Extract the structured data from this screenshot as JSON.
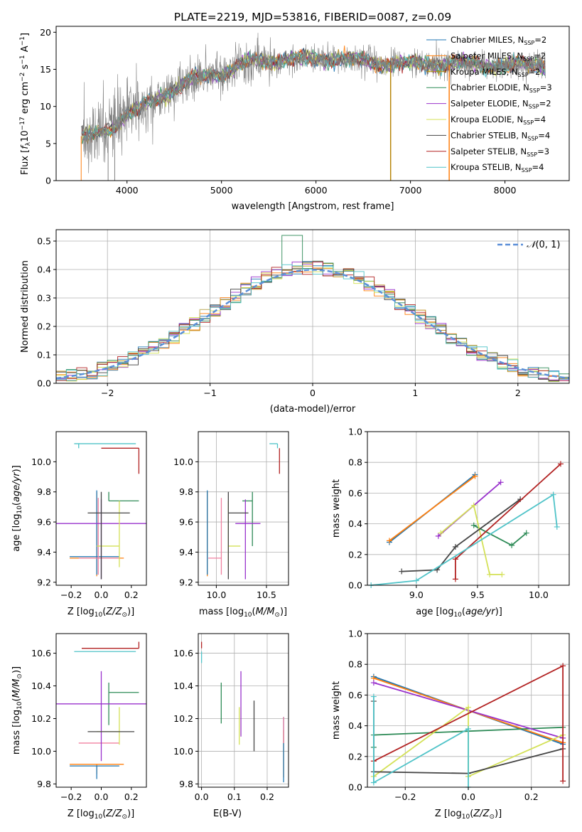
{
  "figure": {
    "title": "PLATE=2219, MJD=53816, FIBERID=0087, z=0.09"
  },
  "chart_data": [
    {
      "id": "spectrum",
      "type": "line",
      "title": "PLATE=2219, MJD=53816, FIBERID=0087, z=0.09",
      "xlabel": "wavelength [Angstrom, rest frame]",
      "ylabel": "Flux [f_λ 10^-17 erg cm^-2 s^-1 A^-1]",
      "xlim": [
        3250,
        8680
      ],
      "ylim": [
        0,
        20.8
      ],
      "xticks": [
        4000,
        5000,
        6000,
        7000,
        8000
      ],
      "yticks": [
        0,
        5,
        10,
        15,
        20
      ],
      "grid": false,
      "legend_position": "right",
      "data_color": "#808080",
      "continuum_anchors": {
        "x": [
          3500,
          3800,
          4000,
          4300,
          4600,
          4800,
          5000,
          5300,
          5700,
          6200,
          6700,
          7000,
          7300,
          8000,
          8400
        ],
        "y": [
          5.5,
          7.0,
          8.8,
          11.0,
          13.0,
          14.0,
          14.5,
          16.0,
          16.3,
          16.5,
          15.8,
          15.7,
          15.8,
          15.5,
          15.6
        ]
      },
      "series": [
        {
          "name": "Chabrier MILES, N_SSP=2",
          "color": "#1f77b4"
        },
        {
          "name": "Salpeter MILES, N_SSP=2",
          "color": "#ff7f0e"
        },
        {
          "name": "Kroupa MILES, N_SSP=2",
          "color": "#b8860b"
        },
        {
          "name": "Chabrier ELODIE, N_SSP=3",
          "color": "#2e8b57"
        },
        {
          "name": "Salpeter ELODIE, N_SSP=2",
          "color": "#9932cc"
        },
        {
          "name": "Kroupa ELODIE, N_SSP=4",
          "color": "#d4e157"
        },
        {
          "name": "Chabrier STELIB, N_SSP=4",
          "color": "#444444"
        },
        {
          "name": "Salpeter STELIB, N_SSP=3",
          "color": "#b22222"
        },
        {
          "name": "Kroupa STELIB, N_SSP=4",
          "color": "#4fc3c8"
        }
      ],
      "legend_labels": [
        {
          "base": "Chabrier MILES, N",
          "sub": "SSP",
          "end": "=2"
        },
        {
          "base": "Salpeter MILES, N",
          "sub": "SSP",
          "end": "=2"
        },
        {
          "base": "Kroupa MILES, N",
          "sub": "SSP",
          "end": "=2"
        },
        {
          "base": "Chabrier ELODIE, N",
          "sub": "SSP",
          "end": "=3"
        },
        {
          "base": "Salpeter ELODIE, N",
          "sub": "SSP",
          "end": "=2"
        },
        {
          "base": "Kroupa ELODIE, N",
          "sub": "SSP",
          "end": "=4"
        },
        {
          "base": "Chabrier STELIB, N",
          "sub": "SSP",
          "end": "=4"
        },
        {
          "base": "Salpeter STELIB, N",
          "sub": "SSP",
          "end": "=3"
        },
        {
          "base": "Kroupa STELIB, N",
          "sub": "SSP",
          "end": "=4"
        }
      ],
      "vertical_drops": [
        {
          "x": 6790,
          "color": "#b8860b"
        },
        {
          "x": 7410,
          "color": "#ff7f0e"
        }
      ]
    },
    {
      "id": "residuals",
      "type": "bar",
      "xlabel": "(data-model)/error",
      "ylabel": "Normed distribution",
      "xlim": [
        -2.5,
        2.5
      ],
      "ylim": [
        0,
        0.54
      ],
      "xticks": [
        -2,
        -1,
        0,
        1,
        2
      ],
      "yticks": [
        0.0,
        0.1,
        0.2,
        0.3,
        0.4,
        0.5
      ],
      "grid": true,
      "legend": "N(0,1)",
      "legend_position": "top-right",
      "gaussian_color": "#5b8fd8",
      "bin_width": 0.1,
      "bin_start": -2.5
    },
    {
      "id": "age-vs-Z",
      "type": "scatter",
      "xlabel": "Z [log10(Z/Z⊙)]",
      "ylabel": "age [log10(age/yr)]",
      "xlim": [
        -0.3,
        0.3
      ],
      "ylim": [
        9.18,
        10.2
      ],
      "xticks": [
        -0.2,
        0.0,
        0.2
      ],
      "yticks": [
        9.2,
        9.4,
        9.6,
        9.8,
        10.0
      ],
      "grid": false,
      "points": [
        {
          "x": -0.03,
          "y": 9.36,
          "xerr": [
            0.18,
            0.18
          ],
          "yerr": [
            0.12,
            0.44
          ],
          "color": "#ff7f0e"
        },
        {
          "x": -0.03,
          "y": 9.37,
          "xerr": [
            0.18,
            0.15
          ],
          "yerr": [
            0.12,
            0.44
          ],
          "color": "#1f77b4"
        },
        {
          "x": -0.02,
          "y": 9.36,
          "xerr": [
            0.13,
            0.14
          ],
          "yerr": [
            0.11,
            0.4
          ],
          "color": "#f080a0"
        },
        {
          "x": 0.05,
          "y": 9.74,
          "xerr": [
            0.0,
            0.2
          ],
          "yerr": [
            0.0,
            0.06
          ],
          "color": "#2e8b57"
        },
        {
          "x": 0.0,
          "y": 9.59,
          "xerr": [
            0.3,
            0.3
          ],
          "yerr": [
            0.37,
            0.16
          ],
          "color": "#9932cc"
        },
        {
          "x": 0.12,
          "y": 9.44,
          "xerr": [
            0.15,
            0.0
          ],
          "yerr": [
            0.14,
            0.3
          ],
          "color": "#d4e157"
        },
        {
          "x": 0.0,
          "y": 9.66,
          "xerr": [
            0.09,
            0.19
          ],
          "yerr": [
            0.44,
            0.14
          ],
          "color": "#444444"
        },
        {
          "x": 0.25,
          "y": 10.09,
          "xerr": [
            0.25,
            0.0
          ],
          "yerr": [
            0.17,
            0.0
          ],
          "color": "#b22222"
        },
        {
          "x": -0.15,
          "y": 10.12,
          "xerr": [
            0.03,
            0.38
          ],
          "yerr": [
            0.03,
            0.0
          ],
          "color": "#4fc3c8"
        }
      ]
    },
    {
      "id": "age-vs-mass",
      "type": "scatter",
      "xlabel": "mass [log10(M/M⊙)]",
      "ylabel": "",
      "xlim": [
        9.82,
        10.72
      ],
      "ylim": [
        9.18,
        10.2
      ],
      "xticks": [
        10.0,
        10.5
      ],
      "yticks": [
        9.2,
        9.4,
        9.6,
        9.8,
        10.0
      ],
      "grid": true,
      "points": [
        {
          "x": 9.91,
          "y": 9.36,
          "xerr": [
            0.0,
            0.0
          ],
          "yerr": [
            0.12,
            0.44
          ],
          "color": "#ff7f0e"
        },
        {
          "x": 9.91,
          "y": 9.37,
          "xerr": [
            0.0,
            0.0
          ],
          "yerr": [
            0.12,
            0.44
          ],
          "color": "#1f77b4"
        },
        {
          "x": 10.05,
          "y": 9.36,
          "xerr": [
            0.13,
            0.0
          ],
          "yerr": [
            0.11,
            0.4
          ],
          "color": "#f080a0"
        },
        {
          "x": 10.36,
          "y": 9.74,
          "xerr": [
            0.1,
            0.0
          ],
          "yerr": [
            0.3,
            0.06
          ],
          "color": "#2e8b57"
        },
        {
          "x": 10.29,
          "y": 9.59,
          "xerr": [
            0.1,
            0.15
          ],
          "yerr": [
            0.37,
            0.16
          ],
          "color": "#9932cc"
        },
        {
          "x": 10.12,
          "y": 9.44,
          "xerr": [
            0.0,
            0.12
          ],
          "yerr": [
            0.14,
            0.3
          ],
          "color": "#d4e157"
        },
        {
          "x": 10.12,
          "y": 9.66,
          "xerr": [
            0.0,
            0.2
          ],
          "yerr": [
            0.44,
            0.14
          ],
          "color": "#444444"
        },
        {
          "x": 10.63,
          "y": 10.09,
          "xerr": [
            0.0,
            0.0
          ],
          "yerr": [
            0.17,
            0.0
          ],
          "color": "#b22222"
        },
        {
          "x": 10.61,
          "y": 10.12,
          "xerr": [
            0.08,
            0.0
          ],
          "yerr": [
            0.03,
            0.0
          ],
          "color": "#4fc3c8"
        }
      ]
    },
    {
      "id": "massweight-vs-age",
      "type": "line",
      "xlabel": "age [log10(age/yr)]",
      "ylabel": "mass weight",
      "xlim": [
        8.6,
        10.25
      ],
      "ylim": [
        0.0,
        1.0
      ],
      "xticks": [
        9.0,
        9.5,
        10.0
      ],
      "yticks": [
        0.0,
        0.2,
        0.4,
        0.6,
        0.8,
        1.0
      ],
      "grid": true,
      "series": [
        {
          "color": "#1f77b4",
          "x": [
            8.78,
            9.48
          ],
          "y": [
            0.28,
            0.72
          ]
        },
        {
          "color": "#ff7f0e",
          "x": [
            8.78,
            9.48
          ],
          "y": [
            0.29,
            0.71
          ]
        },
        {
          "color": "#2e8b57",
          "x": [
            9.47,
            9.78,
            9.9
          ],
          "y": [
            0.39,
            0.26,
            0.34
          ]
        },
        {
          "color": "#9932cc",
          "x": [
            9.18,
            9.69
          ],
          "y": [
            0.32,
            0.67
          ]
        },
        {
          "color": "#d4e157",
          "x": [
            9.2,
            9.47,
            9.6,
            9.7
          ],
          "y": [
            0.34,
            0.52,
            0.07,
            0.07
          ]
        },
        {
          "color": "#444444",
          "x": [
            8.88,
            9.17,
            9.32,
            9.85
          ],
          "y": [
            0.09,
            0.1,
            0.25,
            0.56
          ]
        },
        {
          "color": "#b22222",
          "x": [
            9.32,
            9.32,
            10.18
          ],
          "y": [
            0.04,
            0.17,
            0.79
          ]
        },
        {
          "color": "#4fc3c8",
          "x": [
            8.63,
            9.0,
            10.12,
            10.15
          ],
          "y": [
            0.0,
            0.03,
            0.59,
            0.38
          ]
        }
      ]
    },
    {
      "id": "mass-vs-Z",
      "type": "scatter",
      "xlabel": "Z [log10(Z/Z⊙)]",
      "ylabel": "mass [log10(M/M⊙)]",
      "xlim": [
        -0.3,
        0.3
      ],
      "ylim": [
        9.78,
        10.72
      ],
      "xticks": [
        -0.2,
        0.0,
        0.2
      ],
      "yticks": [
        9.8,
        10.0,
        10.2,
        10.4,
        10.6
      ],
      "grid": false,
      "points": [
        {
          "x": -0.03,
          "y": 9.92,
          "xerr": [
            0.18,
            0.18
          ],
          "yerr": [
            0.06,
            0.0
          ],
          "color": "#ff7f0e"
        },
        {
          "x": -0.03,
          "y": 9.91,
          "xerr": [
            0.18,
            0.15
          ],
          "yerr": [
            0.08,
            0.0
          ],
          "color": "#1f77b4"
        },
        {
          "x": -0.02,
          "y": 10.05,
          "xerr": [
            0.13,
            0.14
          ],
          "yerr": [
            0.0,
            0.0
          ],
          "color": "#f080a0"
        },
        {
          "x": 0.05,
          "y": 10.36,
          "xerr": [
            0.0,
            0.2
          ],
          "yerr": [
            0.2,
            0.06
          ],
          "color": "#2e8b57"
        },
        {
          "x": 0.0,
          "y": 10.29,
          "xerr": [
            0.3,
            0.3
          ],
          "yerr": [
            0.35,
            0.2
          ],
          "color": "#9932cc"
        },
        {
          "x": 0.12,
          "y": 10.12,
          "xerr": [
            0.15,
            0.0
          ],
          "yerr": [
            0.08,
            0.15
          ],
          "color": "#d4e157"
        },
        {
          "x": 0.0,
          "y": 10.12,
          "xerr": [
            0.09,
            0.22
          ],
          "yerr": [
            0.0,
            0.0
          ],
          "color": "#444444"
        },
        {
          "x": 0.25,
          "y": 10.63,
          "xerr": [
            0.38,
            0.0
          ],
          "yerr": [
            0.0,
            0.04
          ],
          "color": "#b22222"
        },
        {
          "x": -0.15,
          "y": 10.61,
          "xerr": [
            0.03,
            0.38
          ],
          "yerr": [
            0.0,
            0.0
          ],
          "color": "#4fc3c8"
        }
      ]
    },
    {
      "id": "mass-vs-EBV",
      "type": "scatter",
      "xlabel": "E(B-V)",
      "ylabel": "",
      "xlim": [
        -0.01,
        0.265
      ],
      "ylim": [
        9.78,
        10.72
      ],
      "xticks": [
        0.0,
        0.1,
        0.2
      ],
      "yticks": [
        9.8,
        10.0,
        10.2,
        10.4,
        10.6
      ],
      "grid": true,
      "points": [
        {
          "x": 0.25,
          "y": 9.92,
          "yerr": [
            0.08,
            0.21
          ],
          "color": "#ff7f0e"
        },
        {
          "x": 0.25,
          "y": 9.91,
          "yerr": [
            0.1,
            0.3
          ],
          "color": "#1f77b4"
        },
        {
          "x": 0.25,
          "y": 10.05,
          "yerr": [
            0.0,
            0.16
          ],
          "color": "#f080a0"
        },
        {
          "x": 0.06,
          "y": 10.36,
          "yerr": [
            0.19,
            0.06
          ],
          "color": "#2e8b57"
        },
        {
          "x": 0.12,
          "y": 10.29,
          "yerr": [
            0.2,
            0.2
          ],
          "color": "#9932cc"
        },
        {
          "x": 0.115,
          "y": 10.12,
          "yerr": [
            0.08,
            0.15
          ],
          "color": "#d4e157"
        },
        {
          "x": 0.16,
          "y": 10.12,
          "yerr": [
            0.12,
            0.19
          ],
          "color": "#444444"
        },
        {
          "x": 0.0,
          "y": 10.63,
          "yerr": [
            0.0,
            0.04
          ],
          "color": "#b22222"
        },
        {
          "x": 0.0,
          "y": 10.61,
          "yerr": [
            0.07,
            0.0
          ],
          "color": "#4fc3c8"
        }
      ]
    },
    {
      "id": "massweight-vs-Z",
      "type": "line",
      "xlabel": "Z [log10(Z/Z⊙)]",
      "ylabel": "mass weight",
      "xlim": [
        -0.32,
        0.32
      ],
      "ylim": [
        0.0,
        1.0
      ],
      "xticks": [
        -0.2,
        0.0,
        0.2
      ],
      "yticks": [
        0.0,
        0.2,
        0.4,
        0.6,
        0.8,
        1.0
      ],
      "grid": true,
      "series": [
        {
          "color": "#1f77b4",
          "x": [
            -0.3,
            0.3
          ],
          "y": [
            0.72,
            0.28
          ]
        },
        {
          "color": "#ff7f0e",
          "x": [
            -0.3,
            0.3
          ],
          "y": [
            0.71,
            0.29
          ]
        },
        {
          "color": "#2e8b57",
          "x": [
            -0.3,
            -0.3,
            0.3
          ],
          "y": [
            0.26,
            0.34,
            0.39
          ]
        },
        {
          "color": "#9932cc",
          "x": [
            -0.3,
            0.3
          ],
          "y": [
            0.68,
            0.32
          ]
        },
        {
          "color": "#d4e157",
          "x": [
            -0.3,
            0.0,
            0.0,
            0.3
          ],
          "y": [
            0.07,
            0.52,
            0.07,
            0.34
          ]
        },
        {
          "color": "#444444",
          "x": [
            -0.3,
            -0.3,
            0.0,
            0.3
          ],
          "y": [
            0.56,
            0.1,
            0.09,
            0.25
          ]
        },
        {
          "color": "#b22222",
          "x": [
            -0.3,
            0.3,
            0.3
          ],
          "y": [
            0.17,
            0.79,
            0.04
          ]
        },
        {
          "color": "#4fc3c8",
          "x": [
            -0.3,
            -0.3,
            0.0,
            0.0
          ],
          "y": [
            0.59,
            0.03,
            0.38,
            0.0
          ]
        }
      ]
    }
  ]
}
